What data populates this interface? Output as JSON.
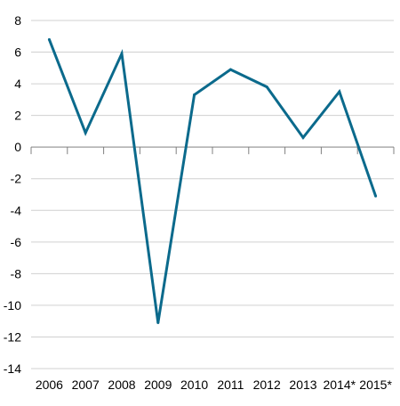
{
  "chart_data": {
    "type": "line",
    "title": "",
    "xlabel": "",
    "ylabel": "",
    "categories": [
      "2006",
      "2007",
      "2008",
      "2009",
      "2010",
      "2011",
      "2012",
      "2013",
      "2014*",
      "2015*"
    ],
    "series": [
      {
        "values": [
          6.8,
          0.9,
          5.9,
          -11.1,
          3.3,
          4.9,
          3.8,
          0.6,
          3.5,
          -3.1
        ]
      }
    ],
    "ylim": [
      -14,
      8
    ],
    "yticks": [
      8,
      6,
      4,
      2,
      0,
      -2,
      -4,
      -6,
      -8,
      -10,
      -12,
      -14
    ],
    "grid": true,
    "legend": "none",
    "colors": {
      "line": "#0b6a8c",
      "grid": "#d0d0d0",
      "axis": "#808080"
    }
  }
}
